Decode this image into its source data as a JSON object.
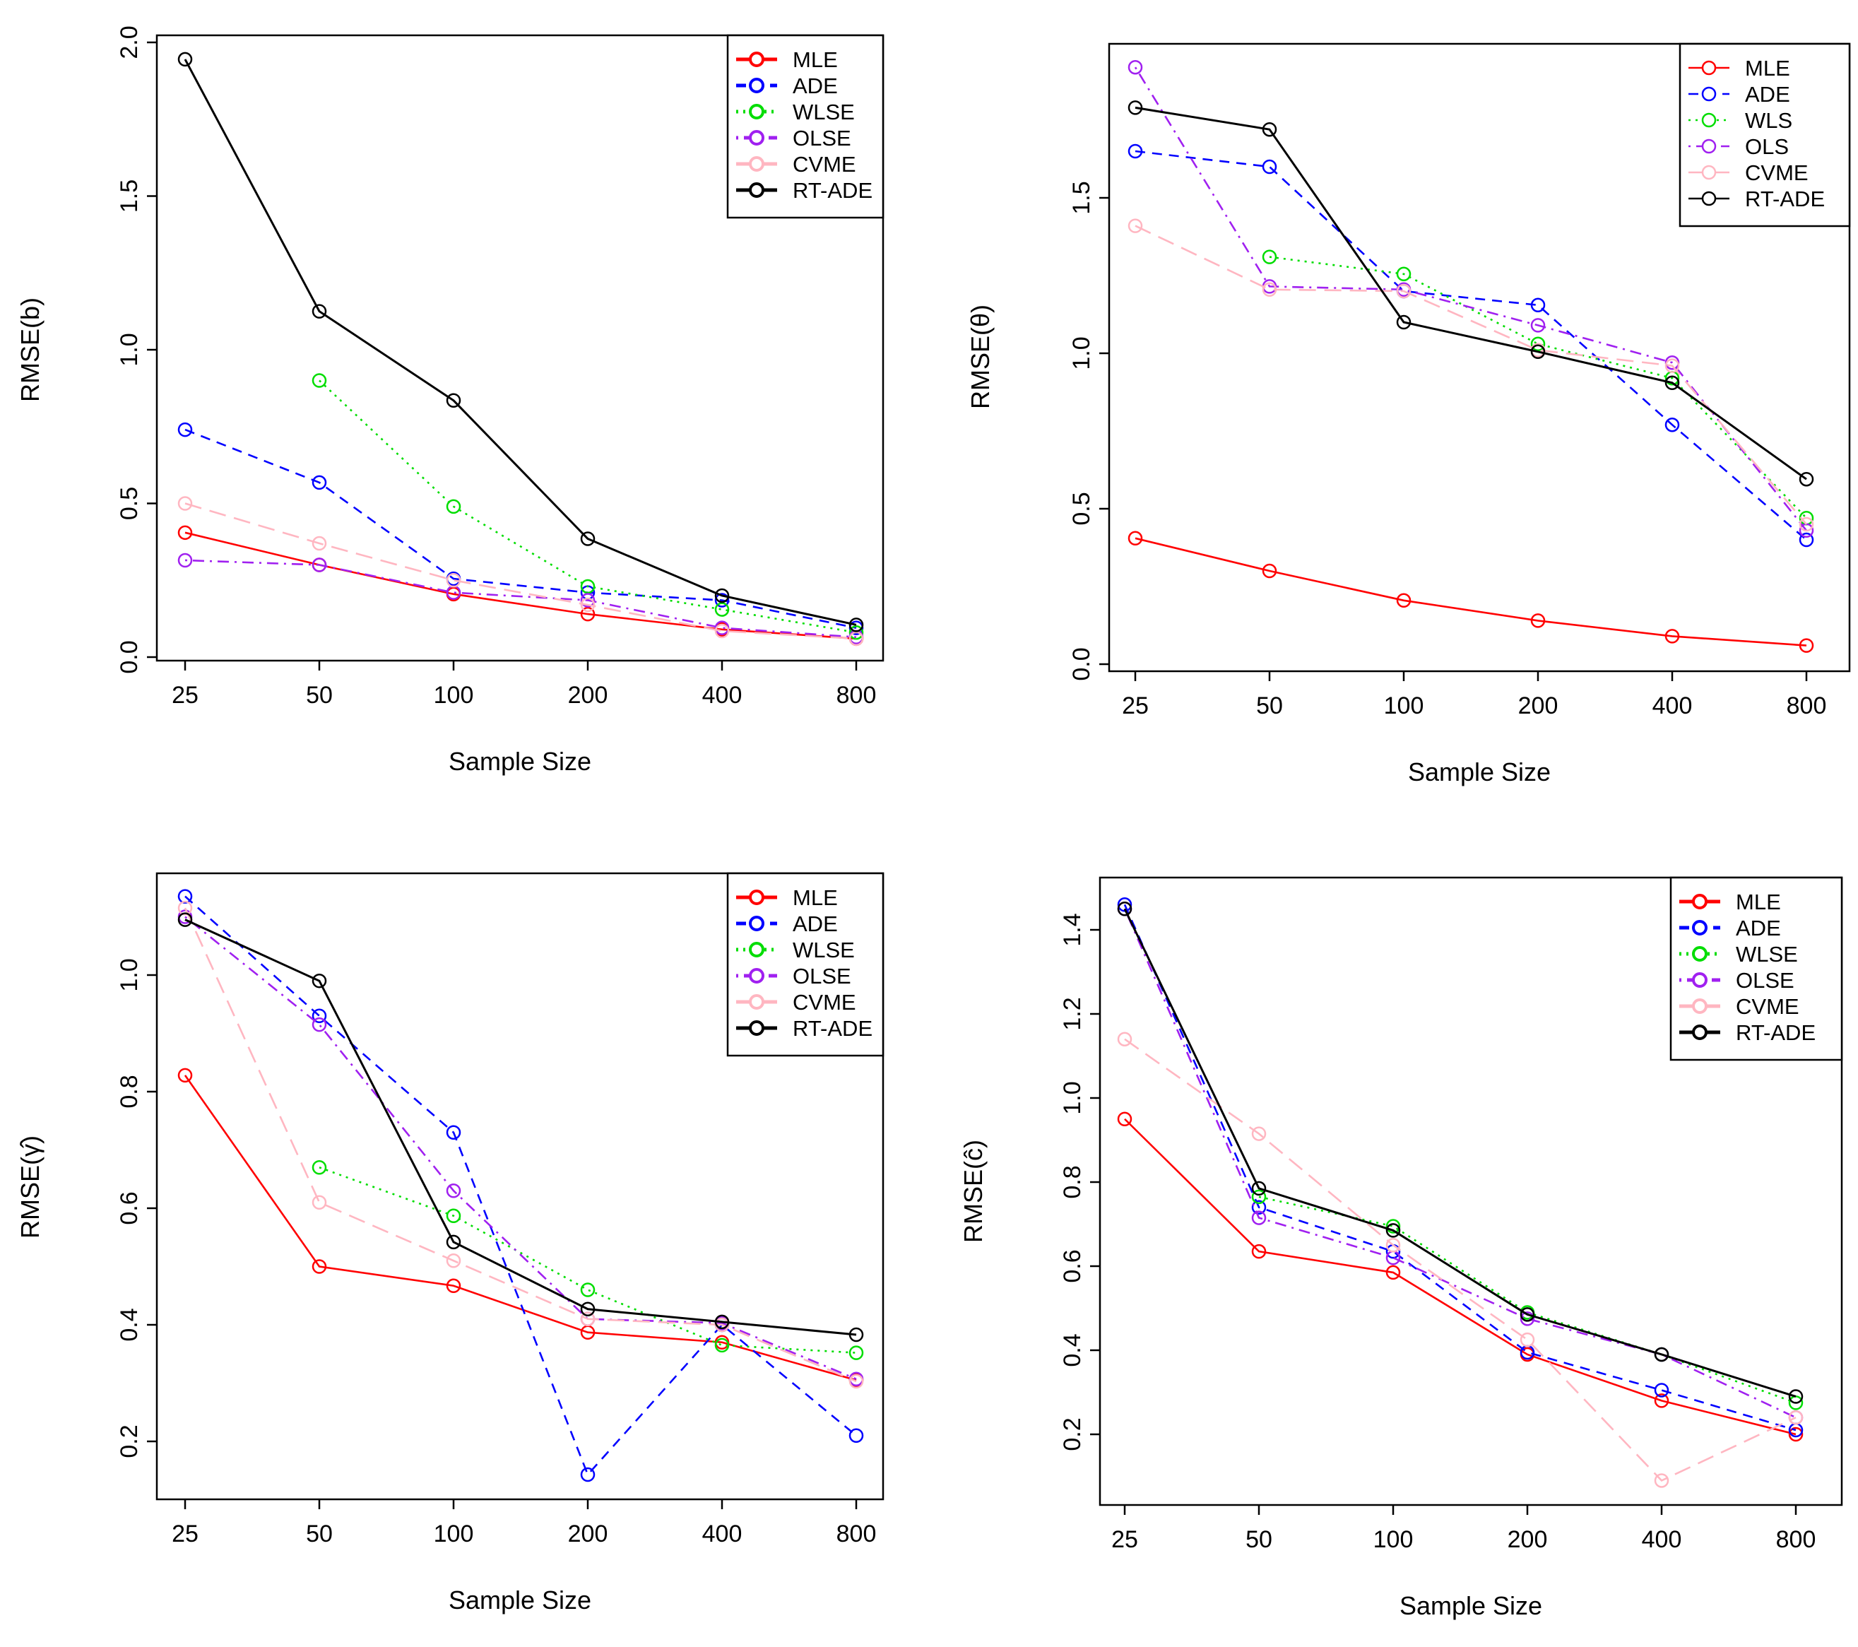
{
  "chart_data": [
    {
      "type": "line",
      "xlabel": "Sample Size",
      "ylabel": "RMSE(b)",
      "categories": [
        "25",
        "50",
        "100",
        "200",
        "400",
        "800"
      ],
      "ylim": [
        0,
        2.0
      ],
      "yticks": [
        "0.0",
        "0.5",
        "1.0",
        "1.5",
        "2.0"
      ],
      "legend_position": "top-right",
      "legend_style": "thick",
      "series": [
        {
          "name": "MLE",
          "color": "#ff0000",
          "dash": "solid",
          "values": [
            0.405,
            0.3,
            0.205,
            0.14,
            0.09,
            0.06
          ]
        },
        {
          "name": "ADE",
          "color": "#0000ff",
          "dash": "dashed",
          "values": [
            0.74,
            0.568,
            0.255,
            0.21,
            0.185,
            0.095
          ]
        },
        {
          "name": "WLSE",
          "color": "#00dd00",
          "dash": "dotted",
          "values": [
            null,
            0.9,
            0.49,
            0.23,
            0.155,
            0.08
          ]
        },
        {
          "name": "OLSE",
          "color": "#a020f0",
          "dash": "dotdash",
          "values": [
            0.315,
            0.3,
            0.21,
            0.185,
            0.095,
            0.065
          ]
        },
        {
          "name": "CVME",
          "color": "#ffb6c1",
          "dash": "longdash",
          "values": [
            0.5,
            0.37,
            0.25,
            0.17,
            0.085,
            0.06
          ]
        },
        {
          "name": "RT-ADE",
          "color": "#000000",
          "dash": "solid",
          "values": [
            1.945,
            1.125,
            0.835,
            0.385,
            0.2,
            0.105
          ]
        }
      ]
    },
    {
      "type": "line",
      "xlabel": "Sample Size",
      "ylabel": "RMSE(θ)",
      "categories": [
        "25",
        "50",
        "100",
        "200",
        "400",
        "800"
      ],
      "ylim": [
        0,
        2.0
      ],
      "yticks": [
        "0.0",
        "0.5",
        "1.0",
        "1.5"
      ],
      "legend_position": "top-right",
      "legend_style": "thin",
      "series": [
        {
          "name": "MLE",
          "color": "#ff0000",
          "dash": "solid",
          "values": [
            0.405,
            0.3,
            0.205,
            0.14,
            0.09,
            0.06
          ]
        },
        {
          "name": "ADE",
          "color": "#0000ff",
          "dash": "dashed",
          "values": [
            1.65,
            1.6,
            1.2,
            1.155,
            0.77,
            0.4
          ]
        },
        {
          "name": "WLS",
          "color": "#00dd00",
          "dash": "dotted",
          "values": [
            null,
            1.31,
            1.255,
            1.03,
            0.92,
            0.47
          ]
        },
        {
          "name": "OLS",
          "color": "#a020f0",
          "dash": "dotdash",
          "values": [
            1.92,
            1.215,
            1.205,
            1.09,
            0.97,
            0.43
          ]
        },
        {
          "name": "CVME",
          "color": "#ffb6c1",
          "dash": "longdash",
          "values": [
            1.41,
            1.205,
            1.2,
            1.01,
            0.96,
            0.45
          ]
        },
        {
          "name": "RT-ADE",
          "color": "#000000",
          "dash": "solid",
          "values": [
            1.79,
            1.72,
            1.1,
            1.005,
            0.905,
            0.595
          ]
        }
      ]
    },
    {
      "type": "line",
      "xlabel": "Sample Size",
      "ylabel": "RMSE(γ̂)",
      "categories": [
        "25",
        "50",
        "100",
        "200",
        "400",
        "800"
      ],
      "ylim": [
        0.1,
        1.2
      ],
      "yticks": [
        "0.2",
        "0.4",
        "0.6",
        "0.8",
        "1.0"
      ],
      "legend_position": "top-right",
      "legend_style": "thick",
      "series": [
        {
          "name": "MLE",
          "color": "#ff0000",
          "dash": "solid",
          "values": [
            0.828,
            0.5,
            0.467,
            0.387,
            0.37,
            0.305
          ]
        },
        {
          "name": "ADE",
          "color": "#0000ff",
          "dash": "dashed",
          "values": [
            1.135,
            0.93,
            0.73,
            0.143,
            0.4,
            0.21
          ]
        },
        {
          "name": "WLSE",
          "color": "#00dd00",
          "dash": "dotted",
          "values": [
            null,
            0.67,
            0.587,
            0.46,
            0.365,
            0.352
          ]
        },
        {
          "name": "OLSE",
          "color": "#a020f0",
          "dash": "dotdash",
          "values": [
            1.1,
            0.915,
            0.63,
            0.41,
            0.403,
            0.307
          ]
        },
        {
          "name": "CVME",
          "color": "#ffb6c1",
          "dash": "longdash",
          "values": [
            1.115,
            0.61,
            0.51,
            0.41,
            0.4,
            0.303
          ]
        },
        {
          "name": "RT-ADE",
          "color": "#000000",
          "dash": "solid",
          "values": [
            1.095,
            0.99,
            0.542,
            0.427,
            0.405,
            0.383
          ]
        }
      ]
    },
    {
      "type": "line",
      "xlabel": "Sample Size",
      "ylabel": "RMSE(ĉ)",
      "categories": [
        "25",
        "50",
        "100",
        "200",
        "400",
        "800"
      ],
      "ylim": [
        0.06,
        1.5
      ],
      "yticks": [
        "0.2",
        "0.4",
        "0.6",
        "0.8",
        "1.0",
        "1.2",
        "1.4"
      ],
      "legend_position": "top-right",
      "legend_style": "thick",
      "series": [
        {
          "name": "MLE",
          "color": "#ff0000",
          "dash": "solid",
          "values": [
            0.95,
            0.635,
            0.585,
            0.39,
            0.28,
            0.2
          ]
        },
        {
          "name": "ADE",
          "color": "#0000ff",
          "dash": "dashed",
          "values": [
            1.46,
            0.74,
            0.635,
            0.395,
            0.305,
            0.21
          ]
        },
        {
          "name": "WLSE",
          "color": "#00dd00",
          "dash": "dotted",
          "values": [
            null,
            0.765,
            0.695,
            0.49,
            0.39,
            0.275
          ]
        },
        {
          "name": "OLSE",
          "color": "#a020f0",
          "dash": "dotdash",
          "values": [
            1.45,
            0.715,
            0.62,
            0.475,
            0.39,
            0.24
          ]
        },
        {
          "name": "CVME",
          "color": "#ffb6c1",
          "dash": "longdash",
          "values": [
            1.14,
            0.915,
            0.65,
            0.425,
            0.09,
            0.24
          ]
        },
        {
          "name": "RT-ADE",
          "color": "#000000",
          "dash": "solid",
          "values": [
            1.45,
            0.785,
            0.685,
            0.485,
            0.39,
            0.29
          ]
        }
      ]
    }
  ]
}
